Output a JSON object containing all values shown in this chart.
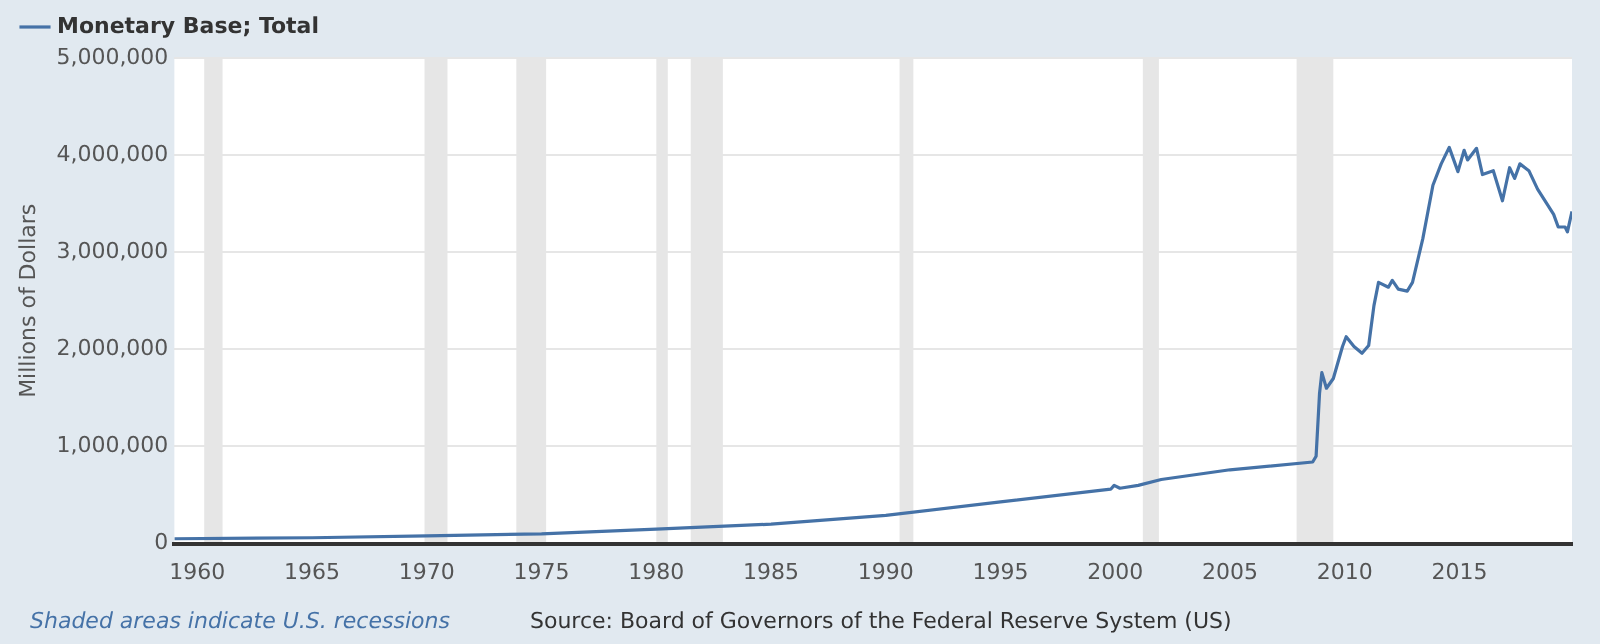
{
  "chart_data": {
    "type": "line",
    "ylabel": "Millions of Dollars",
    "legend": "top left",
    "grid": "y",
    "marker": "none",
    "line_style": "solid",
    "xlim": [
      1959,
      2019.9
    ],
    "xticks": [
      1960,
      1965,
      1970,
      1975,
      1980,
      1985,
      1990,
      1995,
      2000,
      2005,
      2010,
      2015
    ],
    "ylim": [
      0,
      5000000
    ],
    "yticks": [
      0,
      {
        "value": 1000000,
        "label": "1,000,000"
      },
      {
        "value": 2000000,
        "label": "2,000,000"
      },
      {
        "value": 3000000,
        "label": "3,000,000"
      },
      {
        "value": 4000000,
        "label": "4,000,000"
      },
      {
        "value": 5000000,
        "label": "5,000,000"
      }
    ],
    "series": [
      {
        "name": "Monetary Base; Total",
        "color": "#4572a7",
        "x": [
          1959,
          1965,
          1970,
          1975,
          1980,
          1985,
          1990,
          1995,
          1999.8,
          1999.95,
          2000.2,
          2001,
          2002,
          2005,
          2008.6,
          2008.75,
          2008.9,
          2009.0,
          2009.2,
          2009.5,
          2009.9,
          2010.06,
          2010.4,
          2010.75,
          2011.04,
          2011.27,
          2011.47,
          2011.9,
          2012.07,
          2012.33,
          2012.72,
          2012.95,
          2013.4,
          2013.84,
          2014.2,
          2014.55,
          2014.93,
          2015.2,
          2015.35,
          2015.74,
          2016.0,
          2016.47,
          2016.87,
          2017.18,
          2017.4,
          2017.63,
          2018.02,
          2018.4,
          2018.83,
          2019.1,
          2019.3,
          2019.6,
          2019.7,
          2019.9
        ],
        "values": [
          50000,
          60000,
          80000,
          100000,
          150000,
          200000,
          290000,
          430000,
          560000,
          600000,
          570000,
          600000,
          660000,
          760000,
          840000,
          900000,
          1550000,
          1760000,
          1600000,
          1700000,
          2030000,
          2130000,
          2030000,
          1960000,
          2040000,
          2450000,
          2690000,
          2640000,
          2710000,
          2620000,
          2600000,
          2690000,
          3140000,
          3690000,
          3910000,
          4080000,
          3830000,
          4050000,
          3950000,
          4070000,
          3800000,
          3840000,
          3530000,
          3870000,
          3760000,
          3910000,
          3840000,
          3650000,
          3490000,
          3390000,
          3260000,
          3260000,
          3210000,
          3420000
        ]
      }
    ],
    "bands": [
      {
        "axis": "x",
        "from": 1960.3,
        "to": 1961.1,
        "color": "#e6e6e6"
      },
      {
        "axis": "x",
        "from": 1969.9,
        "to": 1970.9,
        "color": "#e6e6e6"
      },
      {
        "axis": "x",
        "from": 1973.9,
        "to": 1975.2,
        "color": "#e6e6e6"
      },
      {
        "axis": "x",
        "from": 1980.0,
        "to": 1980.5,
        "color": "#e6e6e6"
      },
      {
        "axis": "x",
        "from": 1981.5,
        "to": 1982.9,
        "color": "#e6e6e6"
      },
      {
        "axis": "x",
        "from": 1990.6,
        "to": 1991.2,
        "color": "#e6e6e6"
      },
      {
        "axis": "x",
        "from": 2001.2,
        "to": 2001.9,
        "color": "#e6e6e6"
      },
      {
        "axis": "x",
        "from": 2007.9,
        "to": 2009.5,
        "color": "#e6e6e6"
      }
    ],
    "annotations": [
      "Shaded areas indicate U.S. recessions",
      "Source: Board of Governors of the Federal Reserve System (US)"
    ]
  }
}
